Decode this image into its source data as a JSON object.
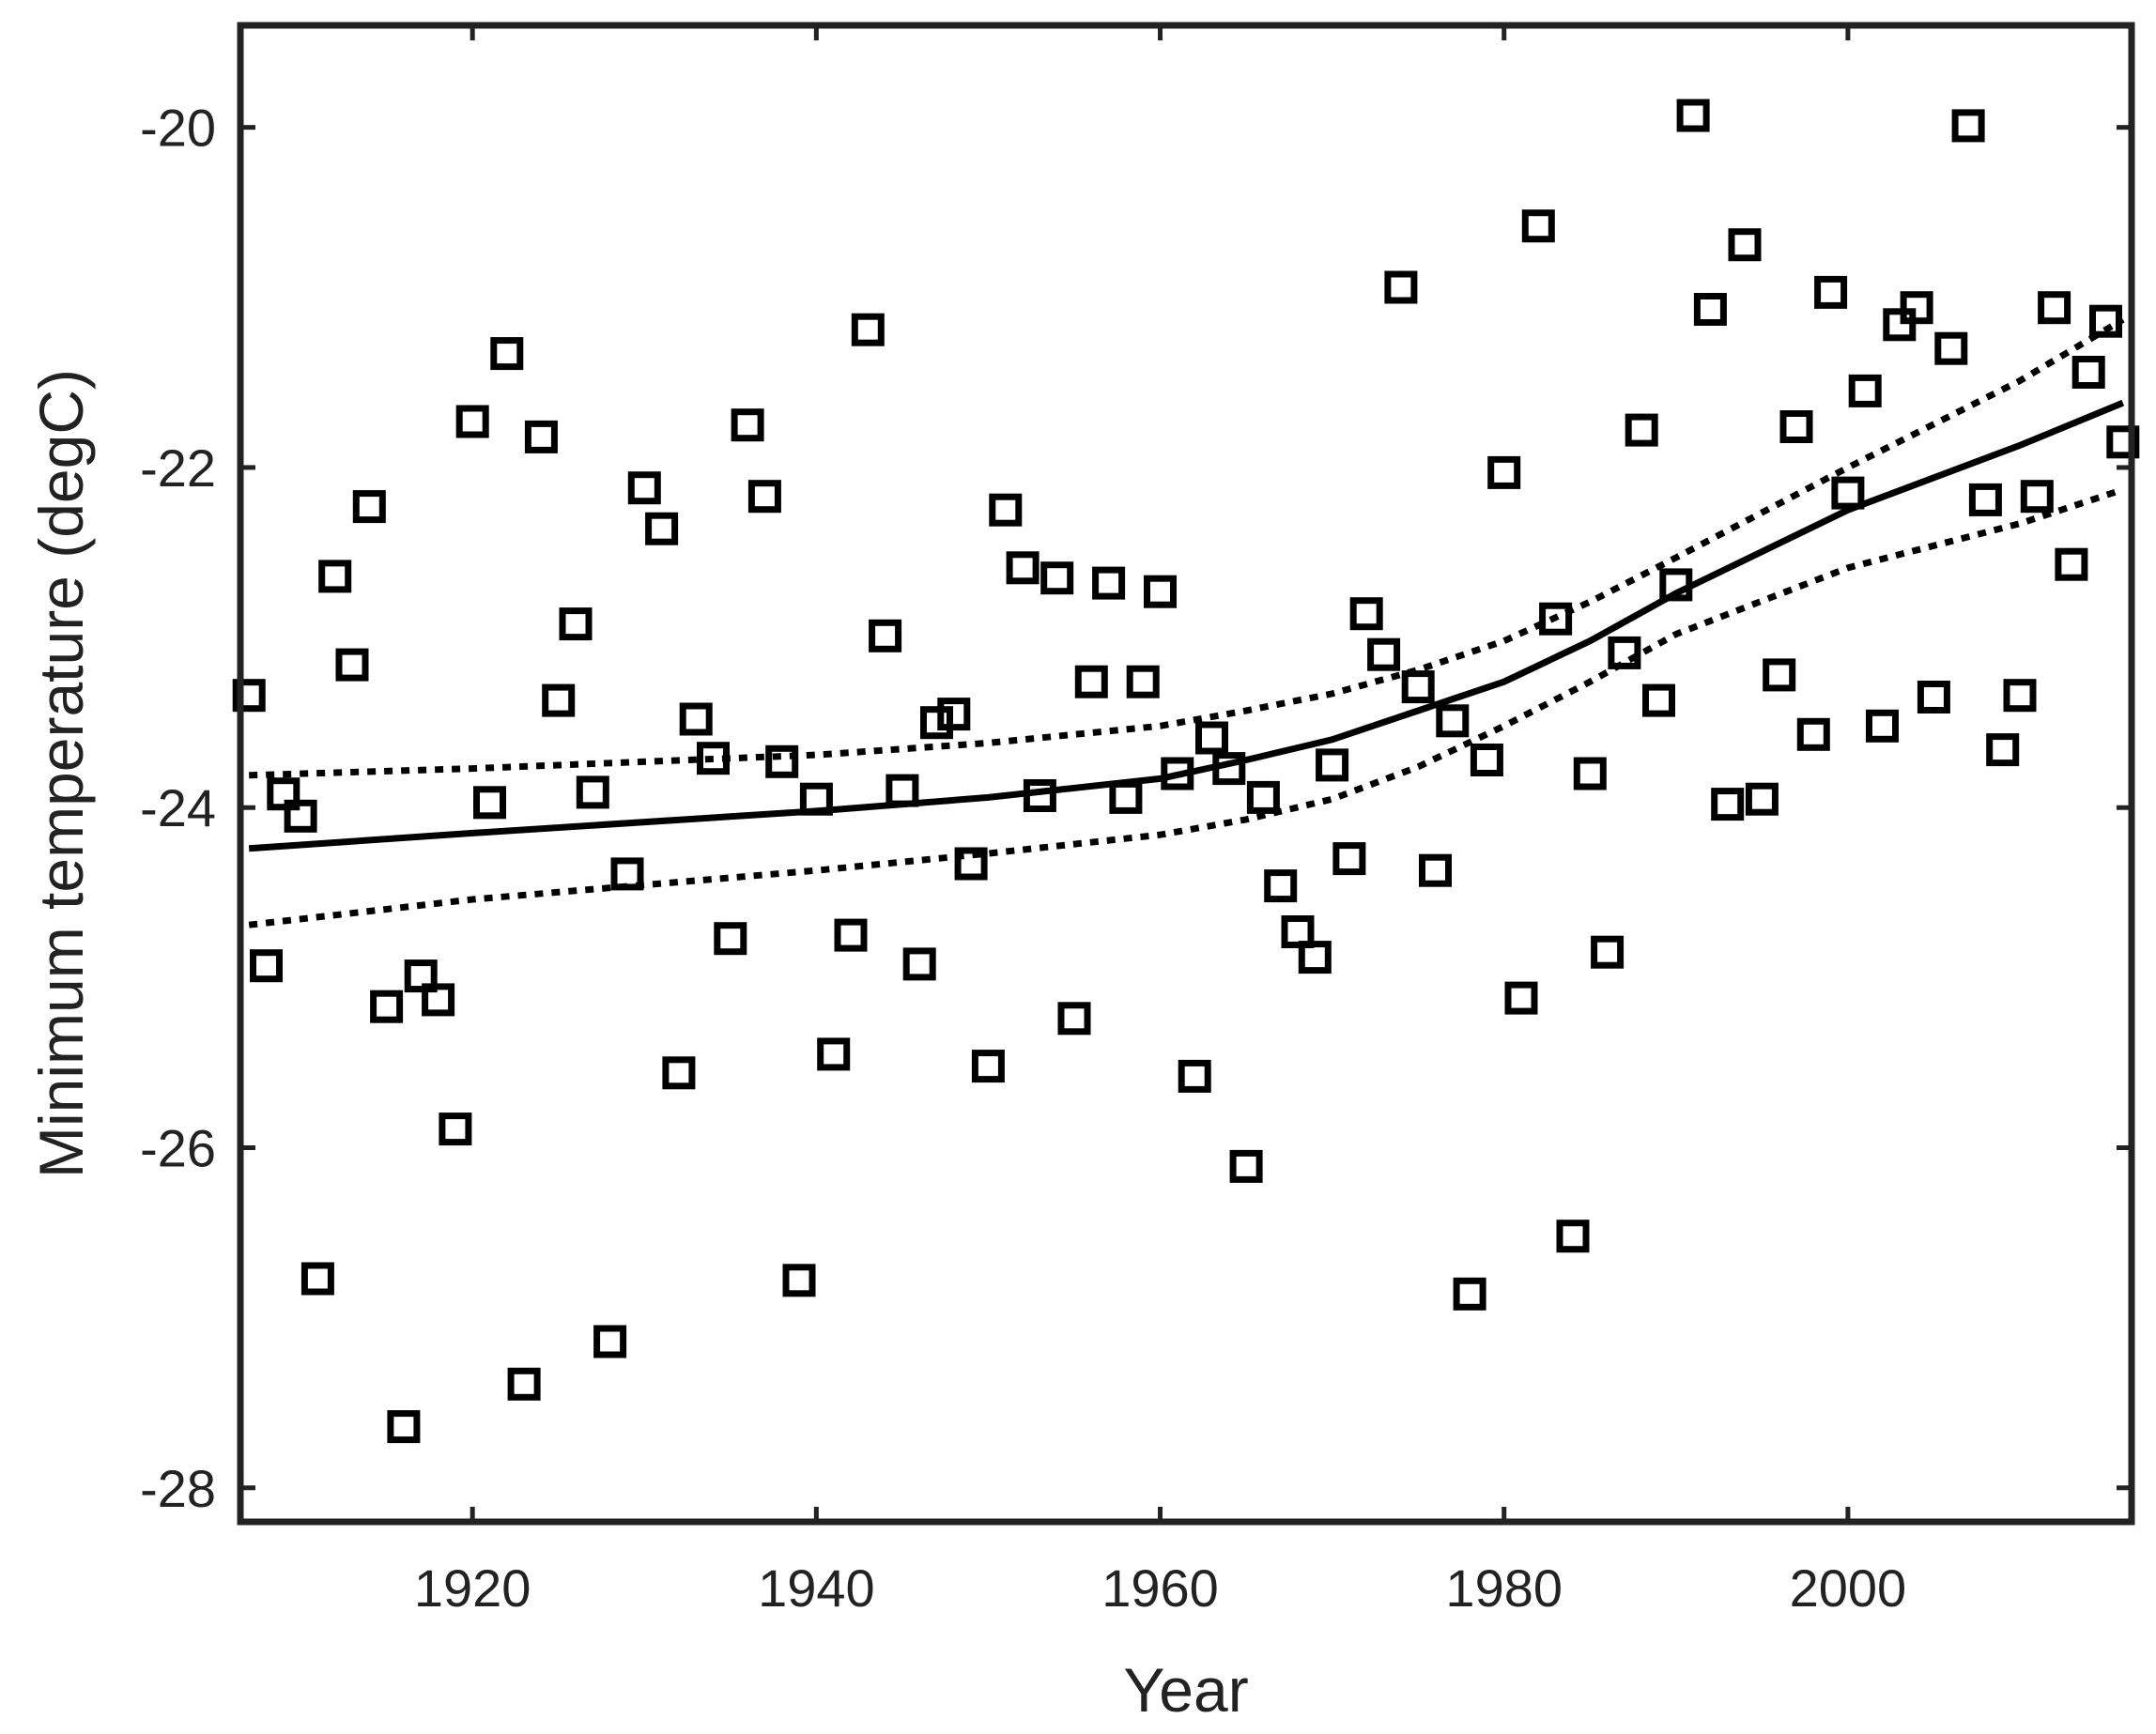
{
  "chart_data": {
    "type": "scatter",
    "xlabel": "Year",
    "ylabel": "Minimum temperature (degC)",
    "xlim": [
      1906.5,
      2016.5
    ],
    "ylim": [
      -28.2,
      -19.4
    ],
    "x_ticks": [
      1920,
      1940,
      1960,
      1980,
      2000
    ],
    "y_ticks": [
      -28,
      -26,
      -24,
      -22,
      -20
    ],
    "x_tick_labels": [
      "1920",
      "1940",
      "1960",
      "1980",
      "2000"
    ],
    "y_tick_labels": [
      "-28",
      "-26",
      "-24",
      "-22",
      "-20"
    ],
    "grid": false,
    "legend": "none",
    "series": [
      {
        "kind": "markers",
        "marker": "open-square",
        "color": "#000000",
        "x": [
          1907,
          1908,
          1909,
          1910,
          1911,
          1912,
          1913,
          1914,
          1915,
          1916,
          1917,
          1918,
          1919,
          1920,
          1921,
          1922,
          1923,
          1924,
          1925,
          1926,
          1927,
          1928,
          1929,
          1930,
          1931,
          1932,
          1933,
          1934,
          1935,
          1936,
          1937,
          1938,
          1939,
          1940,
          1941,
          1942,
          1943,
          1944,
          1945,
          1946,
          1947,
          1948,
          1949,
          1950,
          1951,
          1952,
          1953,
          1954,
          1955,
          1956,
          1957,
          1958,
          1959,
          1960,
          1961,
          1962,
          1963,
          1964,
          1965,
          1966,
          1967,
          1968,
          1969,
          1970,
          1971,
          1972,
          1973,
          1974,
          1975,
          1976,
          1977,
          1978,
          1979,
          1980,
          1981,
          1982,
          1983,
          1984,
          1985,
          1986,
          1987,
          1988,
          1989,
          1990,
          1991,
          1992,
          1993,
          1994,
          1995,
          1996,
          1997,
          1998,
          1999,
          2000,
          2001,
          2002,
          2003,
          2004,
          2005,
          2006,
          2007,
          2008,
          2009,
          2010,
          2011,
          2012,
          2013,
          2014,
          2015,
          2016
        ],
        "y": [
          -23.34,
          -24.93,
          -23.92,
          -24.05,
          -26.77,
          -22.64,
          -23.16,
          -22.23,
          -25.17,
          -27.64,
          -24.99,
          -25.13,
          -25.89,
          -21.73,
          -23.97,
          -21.33,
          -27.39,
          -21.82,
          -23.37,
          -22.92,
          -23.91,
          -27.14,
          -24.39,
          -22.12,
          -22.36,
          -25.56,
          -23.48,
          -23.71,
          -24.77,
          -21.75,
          -22.17,
          -23.73,
          -26.78,
          -23.95,
          -25.45,
          -24.75,
          -21.19,
          -22.99,
          -23.9,
          -24.92,
          -23.5,
          -23.45,
          -24.33,
          -25.52,
          -22.25,
          -22.59,
          -23.93,
          -22.65,
          -25.24,
          -23.26,
          -22.68,
          -23.94,
          -23.26,
          -22.73,
          -23.8,
          -25.58,
          -23.59,
          -23.77,
          -26.11,
          -23.94,
          -24.46,
          -24.73,
          -24.88,
          -23.75,
          -24.3,
          -22.86,
          -23.1,
          -20.94,
          -23.29,
          -24.37,
          -23.49,
          -26.86,
          -23.72,
          -22.03,
          -25.12,
          -20.58,
          -22.89,
          -26.52,
          -23.8,
          -24.85,
          -23.09,
          -21.78,
          -23.37,
          -22.69,
          -19.93,
          -21.07,
          -23.98,
          -20.69,
          -23.95,
          -23.22,
          -21.76,
          -23.57,
          -20.97,
          -22.15,
          -21.55,
          -23.52,
          -21.16,
          -21.06,
          -23.35,
          -21.3,
          -19.99,
          -22.19,
          -23.66,
          -23.34,
          -22.17,
          -21.06,
          -22.57,
          -21.44,
          -21.14,
          -21.85
        ]
      },
      {
        "kind": "line",
        "style": "solid",
        "color": "#000000",
        "x": [
          1907,
          1920,
          1940,
          1950,
          1960,
          1965,
          1970,
          1975,
          1980,
          1985,
          1990,
          2000,
          2010,
          2016
        ],
        "y": [
          -24.24,
          -24.15,
          -24.02,
          -23.94,
          -23.83,
          -23.72,
          -23.6,
          -23.43,
          -23.26,
          -23.02,
          -22.74,
          -22.25,
          -21.87,
          -21.62
        ]
      },
      {
        "kind": "line",
        "style": "dotted",
        "color": "#000000",
        "x": [
          1907,
          1920,
          1940,
          1950,
          1960,
          1965,
          1970,
          1975,
          1980,
          1985,
          1990,
          2000,
          2010,
          2016
        ],
        "y": [
          -23.81,
          -23.77,
          -23.69,
          -23.62,
          -23.52,
          -23.43,
          -23.33,
          -23.19,
          -23.02,
          -22.79,
          -22.53,
          -22.0,
          -21.49,
          -21.13
        ]
      },
      {
        "kind": "line",
        "style": "dotted",
        "color": "#000000",
        "x": [
          1907,
          1920,
          1940,
          1950,
          1960,
          1965,
          1970,
          1975,
          1980,
          1985,
          1990,
          2000,
          2010,
          2016
        ],
        "y": [
          -24.69,
          -24.54,
          -24.37,
          -24.27,
          -24.16,
          -24.07,
          -23.95,
          -23.76,
          -23.52,
          -23.26,
          -22.98,
          -22.59,
          -22.33,
          -22.13
        ]
      }
    ]
  }
}
